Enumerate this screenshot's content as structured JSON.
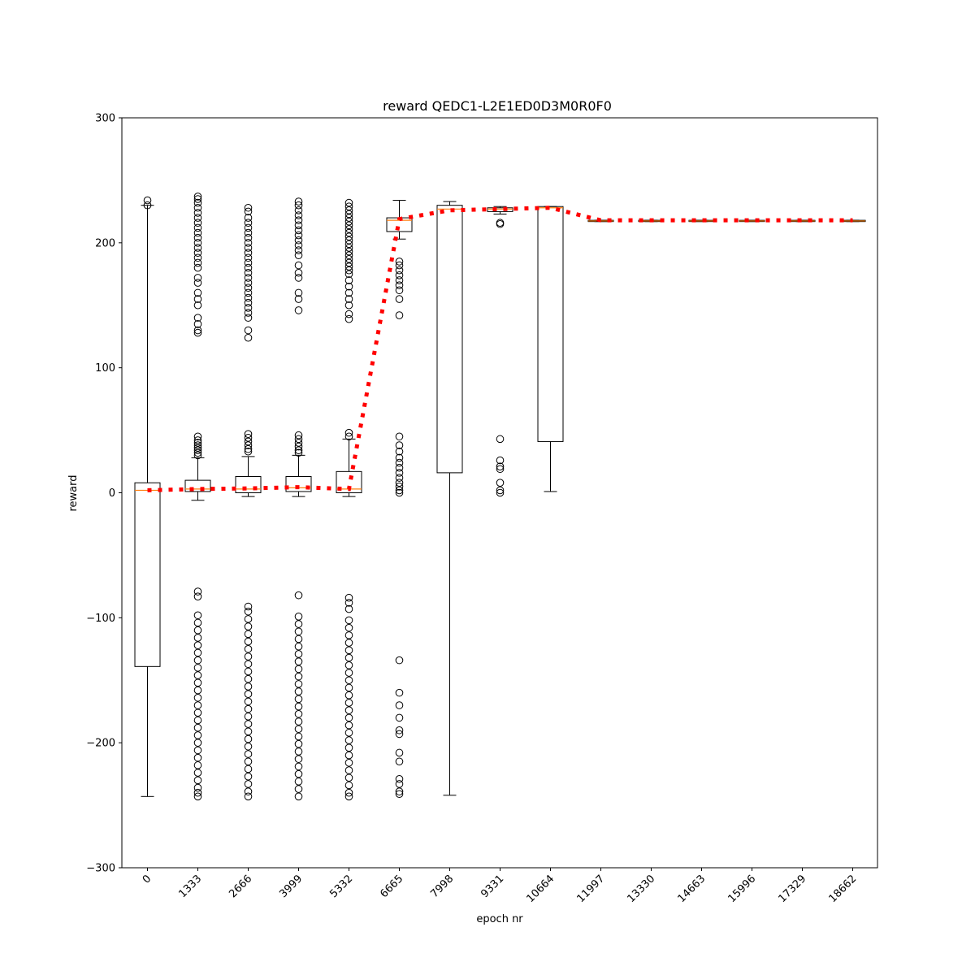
{
  "chart_data": {
    "type": "box",
    "title": "reward QEDC1-L2E1ED0D3M0R0F0",
    "xlabel": "epoch nr",
    "ylabel": "reward",
    "ylim": [
      -300,
      300
    ],
    "yticks": [
      -300,
      -200,
      -100,
      0,
      100,
      200,
      300
    ],
    "categories": [
      "0",
      "1333",
      "2666",
      "3999",
      "5332",
      "6665",
      "7998",
      "9331",
      "10664",
      "11997",
      "13330",
      "14663",
      "15996",
      "17329",
      "18662"
    ],
    "boxes": [
      {
        "q1": -139,
        "median": 2,
        "q3": 8,
        "whisker_low": -243,
        "whisker_high": 230,
        "outliers": [
          234,
          230
        ]
      },
      {
        "q1": 1,
        "median": 3,
        "q3": 10,
        "whisker_low": -6,
        "whisker_high": 28,
        "outliers": [
          237,
          235,
          232,
          228,
          224,
          220,
          216,
          212,
          208,
          204,
          200,
          196,
          192,
          188,
          184,
          180,
          172,
          168,
          160,
          155,
          150,
          140,
          135,
          130,
          128,
          45,
          42,
          40,
          38,
          36,
          34,
          32,
          30,
          -79,
          -83,
          -98,
          -104,
          -110,
          -116,
          -122,
          -128,
          -134,
          -140,
          -146,
          -152,
          -158,
          -164,
          -170,
          -176,
          -182,
          -188,
          -194,
          -200,
          -206,
          -212,
          -218,
          -224,
          -230,
          -236,
          -240,
          -243
        ]
      },
      {
        "q1": 0,
        "median": 3,
        "q3": 13,
        "whisker_low": -3,
        "whisker_high": 29,
        "outliers": [
          228,
          225,
          220,
          216,
          212,
          208,
          204,
          200,
          196,
          192,
          188,
          184,
          180,
          176,
          172,
          168,
          164,
          160,
          156,
          152,
          148,
          144,
          140,
          130,
          124,
          47,
          44,
          41,
          38,
          35,
          33,
          -91,
          -95,
          -101,
          -107,
          -113,
          -119,
          -125,
          -131,
          -137,
          -143,
          -149,
          -155,
          -161,
          -167,
          -173,
          -179,
          -185,
          -191,
          -197,
          -203,
          -209,
          -215,
          -221,
          -227,
          -233,
          -239,
          -243
        ]
      },
      {
        "q1": 1,
        "median": 4,
        "q3": 13,
        "whisker_low": -3,
        "whisker_high": 30,
        "outliers": [
          233,
          230,
          226,
          222,
          218,
          214,
          210,
          206,
          202,
          198,
          194,
          190,
          182,
          176,
          172,
          160,
          155,
          146,
          46,
          43,
          40,
          37,
          34,
          32,
          -82,
          -99,
          -105,
          -111,
          -117,
          -123,
          -129,
          -135,
          -141,
          -147,
          -153,
          -159,
          -165,
          -171,
          -177,
          -183,
          -189,
          -195,
          -201,
          -207,
          -213,
          -219,
          -225,
          -231,
          -237,
          -243
        ]
      },
      {
        "q1": 0,
        "median": 3,
        "q3": 17,
        "whisker_low": -3,
        "whisker_high": 43,
        "outliers": [
          232,
          229,
          226,
          223,
          220,
          217,
          214,
          211,
          208,
          205,
          202,
          199,
          196,
          193,
          190,
          187,
          184,
          181,
          178,
          175,
          170,
          165,
          160,
          155,
          150,
          143,
          139,
          48,
          45,
          -84,
          -88,
          -93,
          -102,
          -108,
          -114,
          -120,
          -126,
          -132,
          -138,
          -144,
          -150,
          -156,
          -162,
          -168,
          -174,
          -180,
          -186,
          -192,
          -198,
          -204,
          -210,
          -216,
          -222,
          -228,
          -234,
          -240,
          -243
        ]
      },
      {
        "q1": 209,
        "median": 218,
        "q3": 220,
        "whisker_low": 203,
        "whisker_high": 234,
        "outliers": [
          185,
          182,
          178,
          174,
          170,
          166,
          162,
          155,
          142,
          45,
          38,
          33,
          28,
          24,
          20,
          16,
          12,
          8,
          5,
          2,
          0,
          -134,
          -160,
          -170,
          -180,
          -190,
          -193,
          -208,
          -215,
          -229,
          -233,
          -239,
          -241
        ]
      },
      {
        "q1": 16,
        "median": 227,
        "q3": 230,
        "whisker_low": -242,
        "whisker_high": 233,
        "outliers": []
      },
      {
        "q1": 225,
        "median": 227,
        "q3": 228,
        "whisker_low": 223,
        "whisker_high": 229,
        "outliers": [
          216,
          215,
          43,
          26,
          21,
          19,
          8,
          2,
          0
        ]
      },
      {
        "q1": 41,
        "median": 228,
        "q3": 229,
        "whisker_low": 1,
        "whisker_high": 229,
        "outliers": []
      },
      {
        "q1": 217,
        "median": 217.5,
        "q3": 218,
        "whisker_low": 217,
        "whisker_high": 218,
        "outliers": []
      },
      {
        "q1": 217,
        "median": 217.5,
        "q3": 218,
        "whisker_low": 217,
        "whisker_high": 218,
        "outliers": []
      },
      {
        "q1": 217,
        "median": 217.5,
        "q3": 218,
        "whisker_low": 217,
        "whisker_high": 218,
        "outliers": []
      },
      {
        "q1": 217,
        "median": 217.5,
        "q3": 218,
        "whisker_low": 217,
        "whisker_high": 218,
        "outliers": []
      },
      {
        "q1": 217,
        "median": 217.5,
        "q3": 218,
        "whisker_low": 217,
        "whisker_high": 218,
        "outliers": []
      },
      {
        "q1": 217,
        "median": 217.5,
        "q3": 218,
        "whisker_low": 217,
        "whisker_high": 218,
        "outliers": []
      }
    ],
    "mean_line": {
      "values": [
        2,
        3,
        3.5,
        4.5,
        3,
        219,
        226,
        227,
        228,
        218,
        218,
        218,
        218,
        218,
        218
      ],
      "color": "#ff0000",
      "style": "dotted"
    },
    "median_color": "#ff7f0e",
    "grid": false
  }
}
